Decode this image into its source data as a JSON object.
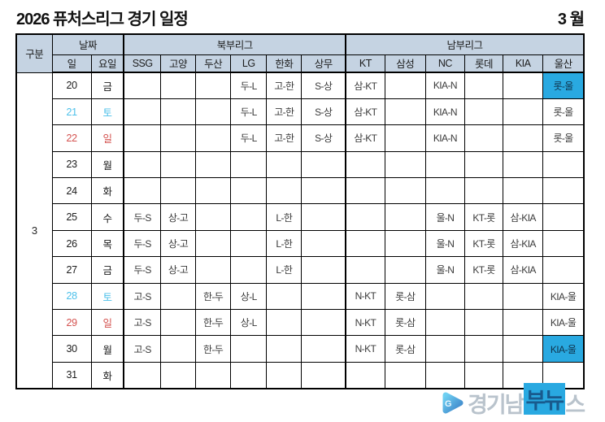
{
  "page": {
    "title": "2026 퓨처스리그 경기 일정",
    "month_label": "3 월"
  },
  "table": {
    "header": {
      "gubun": "구분",
      "date": "날짜",
      "north_league": "북부리그",
      "south_league": "남부리그",
      "day": "일",
      "weekday": "요일",
      "teams": [
        "SSG",
        "고양",
        "두산",
        "LG",
        "한화",
        "상무",
        "KT",
        "삼성",
        "NC",
        "롯데",
        "KIA",
        "울산"
      ]
    },
    "month": "3",
    "rows": [
      {
        "day": "20",
        "weekday": "금",
        "type": "weekday",
        "cells": [
          "",
          "",
          "",
          "두-L",
          "고-한",
          "S-상",
          "삼-KT",
          "",
          "KIA-N",
          "",
          "",
          "롯-울"
        ],
        "highlight": [
          11
        ]
      },
      {
        "day": "21",
        "weekday": "토",
        "type": "sat",
        "cells": [
          "",
          "",
          "",
          "두-L",
          "고-한",
          "S-상",
          "삼-KT",
          "",
          "KIA-N",
          "",
          "",
          "롯-울"
        ],
        "highlight": []
      },
      {
        "day": "22",
        "weekday": "일",
        "type": "sun",
        "cells": [
          "",
          "",
          "",
          "두-L",
          "고-한",
          "S-상",
          "삼-KT",
          "",
          "KIA-N",
          "",
          "",
          "롯-울"
        ],
        "highlight": []
      },
      {
        "day": "23",
        "weekday": "월",
        "type": "weekday",
        "cells": [
          "",
          "",
          "",
          "",
          "",
          "",
          "",
          "",
          "",
          "",
          "",
          ""
        ],
        "highlight": []
      },
      {
        "day": "24",
        "weekday": "화",
        "type": "weekday",
        "cells": [
          "",
          "",
          "",
          "",
          "",
          "",
          "",
          "",
          "",
          "",
          "",
          ""
        ],
        "highlight": []
      },
      {
        "day": "25",
        "weekday": "수",
        "type": "weekday",
        "cells": [
          "두-S",
          "상-고",
          "",
          "",
          "L-한",
          "",
          "",
          "",
          "울-N",
          "KT-롯",
          "삼-KIA",
          ""
        ],
        "highlight": []
      },
      {
        "day": "26",
        "weekday": "목",
        "type": "weekday",
        "cells": [
          "두-S",
          "상-고",
          "",
          "",
          "L-한",
          "",
          "",
          "",
          "울-N",
          "KT-롯",
          "삼-KIA",
          ""
        ],
        "highlight": []
      },
      {
        "day": "27",
        "weekday": "금",
        "type": "weekday",
        "cells": [
          "두-S",
          "상-고",
          "",
          "",
          "L-한",
          "",
          "",
          "",
          "울-N",
          "KT-롯",
          "삼-KIA",
          ""
        ],
        "highlight": []
      },
      {
        "day": "28",
        "weekday": "토",
        "type": "sat",
        "cells": [
          "고-S",
          "",
          "한-두",
          "상-L",
          "",
          "",
          "N-KT",
          "롯-삼",
          "",
          "",
          "",
          "KIA-울"
        ],
        "highlight": []
      },
      {
        "day": "29",
        "weekday": "일",
        "type": "sun",
        "cells": [
          "고-S",
          "",
          "한-두",
          "상-L",
          "",
          "",
          "N-KT",
          "롯-삼",
          "",
          "",
          "",
          "KIA-울"
        ],
        "highlight": []
      },
      {
        "day": "30",
        "weekday": "월",
        "type": "weekday",
        "cells": [
          "고-S",
          "",
          "한-두",
          "",
          "",
          "",
          "N-KT",
          "롯-삼",
          "",
          "",
          "",
          "KIA-울"
        ],
        "highlight": [
          11
        ]
      },
      {
        "day": "31",
        "weekday": "화",
        "type": "weekday",
        "cells": [
          "",
          "",
          "",
          "",
          "",
          "",
          "",
          "",
          "",
          "",
          "",
          ""
        ],
        "highlight": []
      }
    ]
  },
  "colors": {
    "header_bg": "#C5D3E2",
    "highlight_bg": "#29A9E1",
    "saturday_text": "#4CC0EA",
    "sunday_text": "#D4524F"
  },
  "watermark": {
    "name": "경기남부뉴스",
    "part1": "경기남",
    "part2": "부뉴",
    "part3": "스",
    "logo_letter": "G"
  }
}
